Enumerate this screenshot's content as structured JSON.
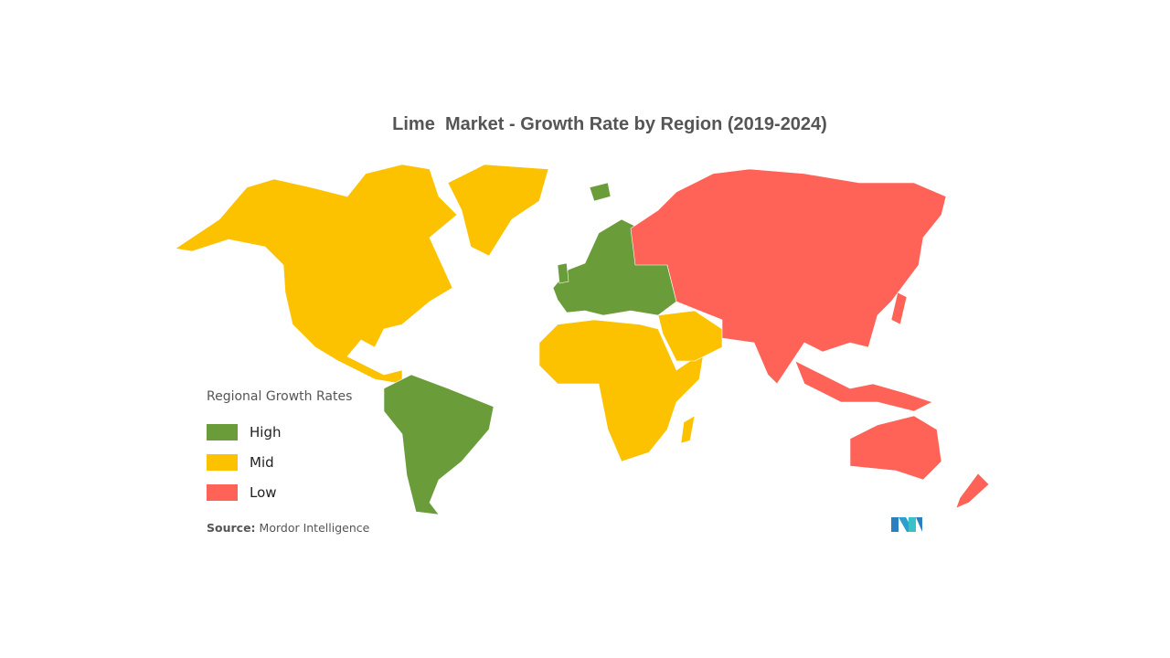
{
  "title": "Lime  Market - Growth Rate by Region (2019-2024)",
  "legend": {
    "title": "Regional Growth Rates",
    "items": [
      {
        "label": "High",
        "color": "#6a9c3a"
      },
      {
        "label": "Mid",
        "color": "#fcc200"
      },
      {
        "label": "Low",
        "color": "#ff6358"
      }
    ]
  },
  "regions": {
    "north-america": "Mid",
    "greenland": "Mid",
    "south-america": "High",
    "europe": "High",
    "africa": "Mid",
    "middle-east": "Mid",
    "asia": "Low",
    "australia-oceania": "Low"
  },
  "source": {
    "label": "Source:",
    "value": "Mordor Intelligence"
  },
  "logo": {
    "text": "MI",
    "color": "#2a9fd0"
  }
}
